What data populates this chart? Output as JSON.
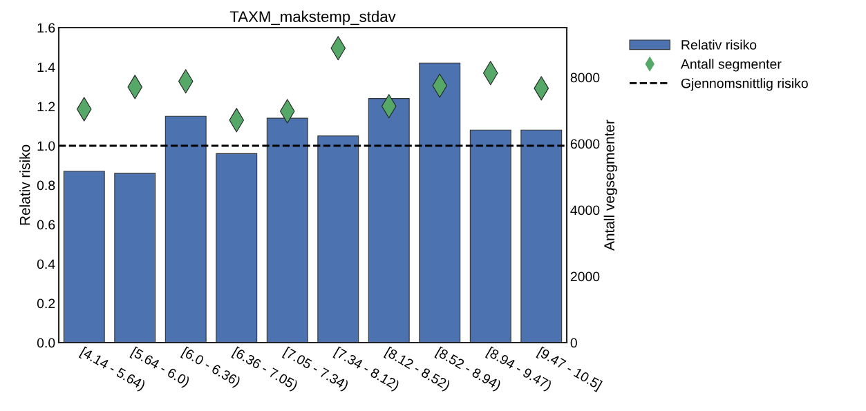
{
  "chart_data": {
    "type": "bar",
    "title": "TAXM_makstemp_stdav",
    "ylabel": "Relativ risiko",
    "y2label": "Antall vegsegmenter",
    "categories": [
      "[4.14 - 5.64)",
      "[5.64 - 6.0)",
      "[6.0 - 6.36)",
      "[6.36 - 7.05)",
      "[7.05 - 7.34)",
      "[7.34 - 8.12)",
      "[8.12 - 8.52)",
      "[8.52 - 8.94)",
      "[8.94 - 9.47)",
      "[9.47 - 10.5]"
    ],
    "series": [
      {
        "name": "Relativ risiko",
        "color": "#4c72b0",
        "values": [
          0.87,
          0.86,
          1.15,
          0.96,
          1.14,
          1.05,
          1.24,
          1.42,
          1.08,
          1.08
        ]
      },
      {
        "name": "Antall segmenter",
        "type": "scatter",
        "axis": "y2",
        "color": "#55a868",
        "marker": "diamond",
        "values": [
          7040,
          7710,
          7880,
          6710,
          6980,
          8880,
          7130,
          7750,
          8130,
          7670
        ]
      }
    ],
    "ref_lines": [
      {
        "axis": "y",
        "value": 1.0,
        "label": "Gjennomsnittlig risiko",
        "color": "#000000",
        "line_style": "dashed"
      }
    ],
    "ylim": [
      0,
      1.6
    ],
    "yticks": [
      {
        "value": 0,
        "label": "0.0"
      },
      0.2,
      0.4,
      0.6,
      0.8,
      {
        "value": 1,
        "label": "1.0"
      },
      1.2,
      1.4,
      1.6
    ],
    "y2lim": [
      0,
      9500
    ],
    "y2ticks": [
      0,
      2000,
      4000,
      6000,
      8000
    ],
    "grid": false,
    "legend": "top right"
  }
}
